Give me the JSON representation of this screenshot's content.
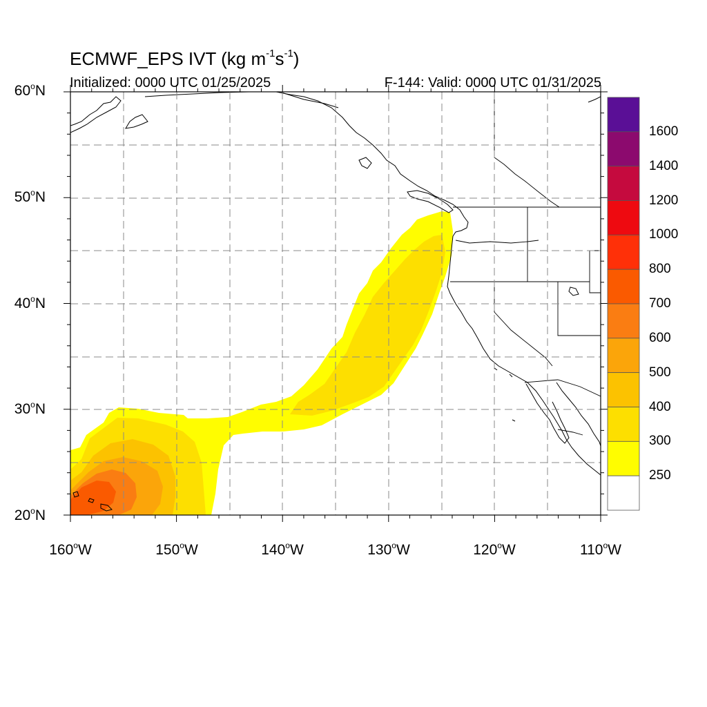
{
  "title": {
    "prefix": "ECMWF_EPS IVT (kg m",
    "exp1": "-1",
    "mid": "s",
    "exp2": "-1",
    "suffix": ")"
  },
  "subtitle_left": "Initialized: 0000 UTC 01/25/2025",
  "subtitle_right": "F-144: Valid: 0000 UTC 01/31/2025",
  "lat_labels": [
    {
      "value": "60",
      "dir": "N"
    },
    {
      "value": "50",
      "dir": "N"
    },
    {
      "value": "40",
      "dir": "N"
    },
    {
      "value": "30",
      "dir": "N"
    },
    {
      "value": "20",
      "dir": "N"
    }
  ],
  "lon_labels": [
    {
      "value": "160",
      "dir": "W"
    },
    {
      "value": "150",
      "dir": "W"
    },
    {
      "value": "140",
      "dir": "W"
    },
    {
      "value": "130",
      "dir": "W"
    },
    {
      "value": "120",
      "dir": "W"
    },
    {
      "value": "110",
      "dir": "W"
    }
  ],
  "map_extent": {
    "lon": [
      -160,
      -110
    ],
    "lat": [
      20,
      60
    ]
  },
  "colorbar": {
    "labels": [
      "1600",
      "1400",
      "1200",
      "1000",
      "800",
      "700",
      "600",
      "500",
      "400",
      "300",
      "250"
    ],
    "colors": [
      "#5a0f96",
      "#8c0a6e",
      "#c50a3e",
      "#ee0a10",
      "#ff3008",
      "#fa5a00",
      "#fa7d12",
      "#fba50a",
      "#fcc200",
      "#fddf00",
      "#fffd00",
      "#ffffff"
    ]
  }
}
